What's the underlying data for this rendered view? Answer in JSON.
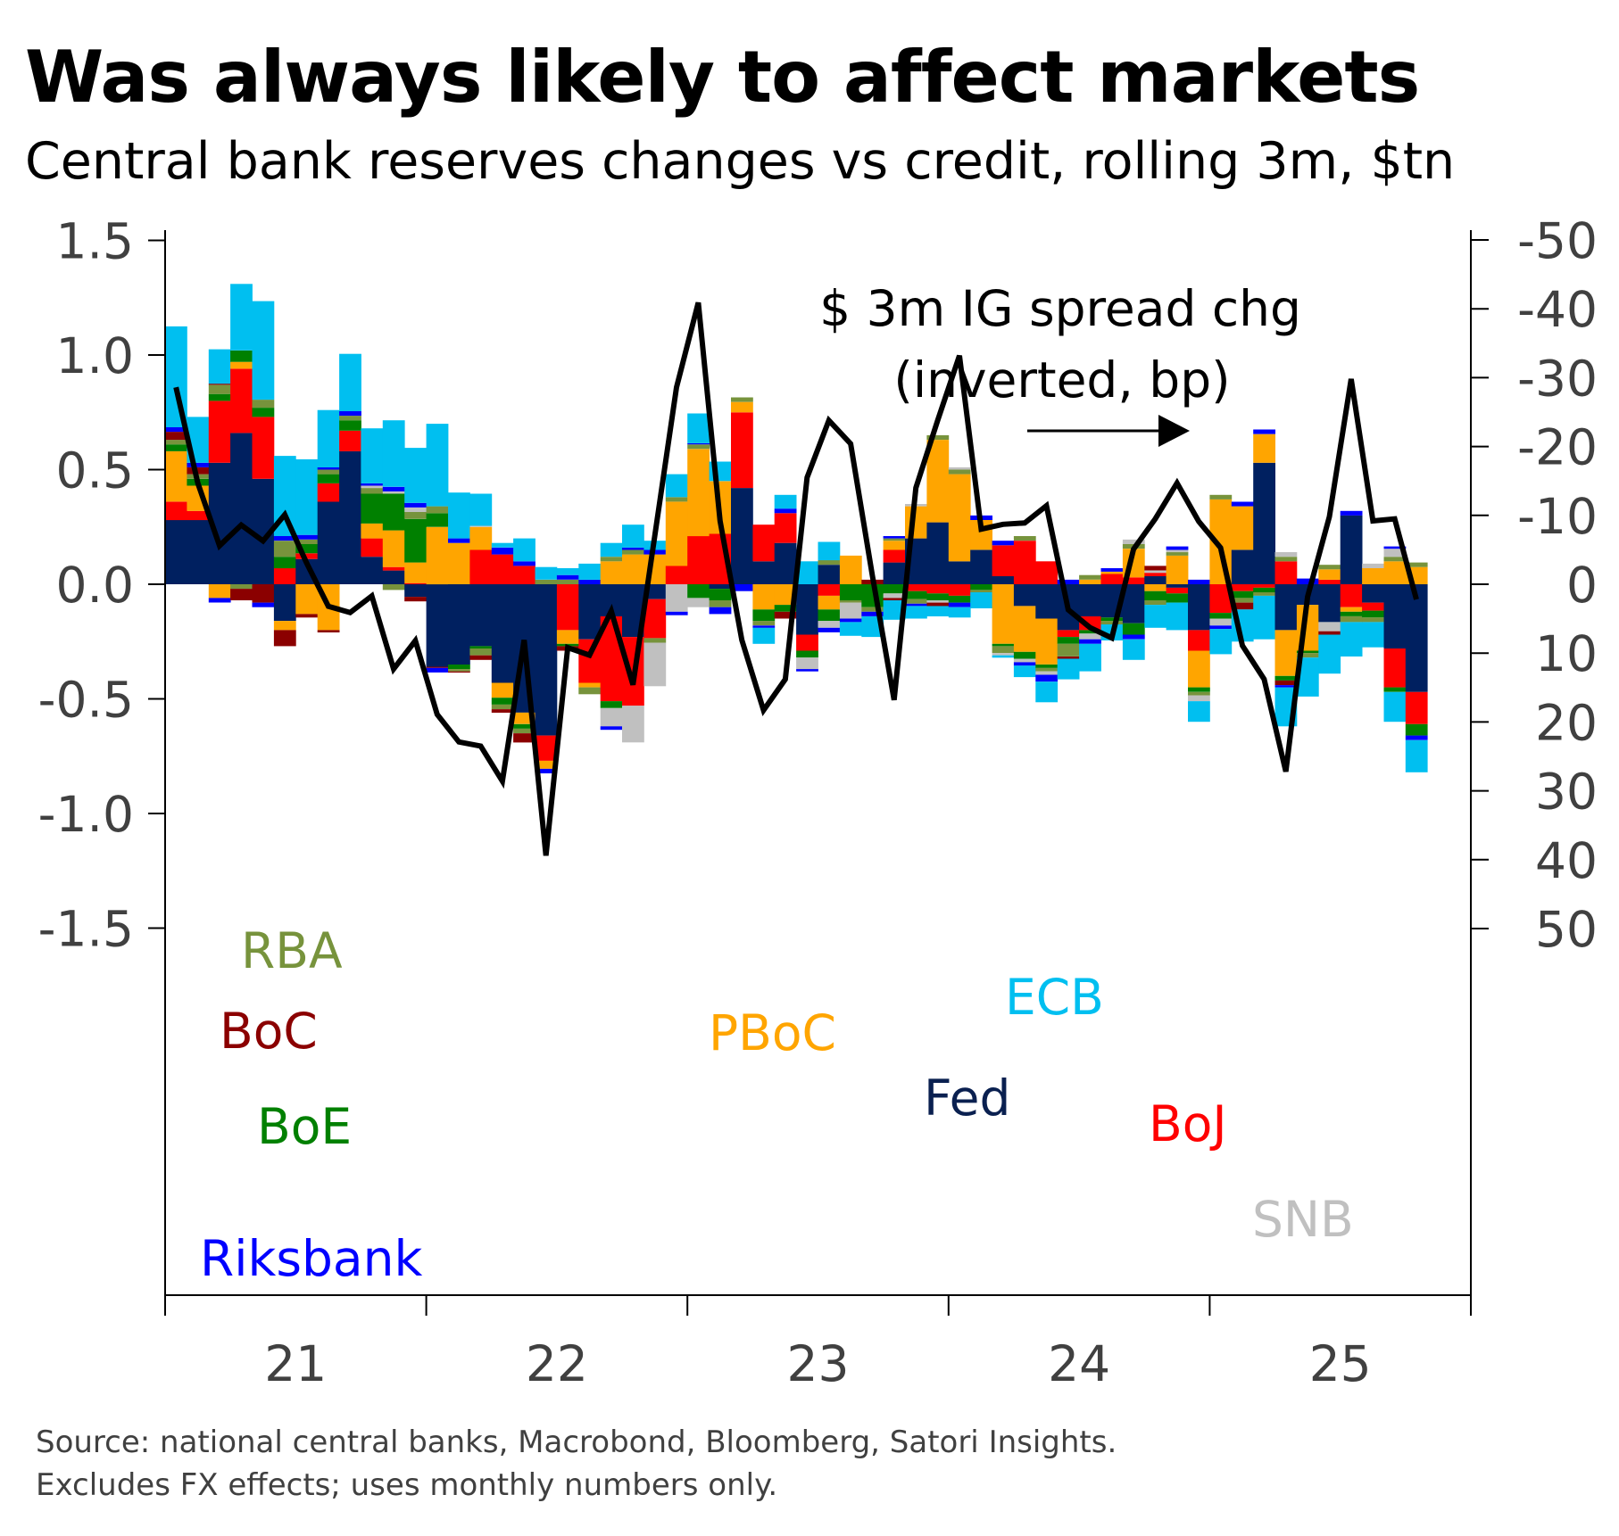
{
  "title": "Was always likely to affect markets",
  "subtitle": "Central bank reserves changes vs credit, rolling 3m, $tn",
  "source_lines": [
    "Source: national central banks, Macrobond, Bloomberg, Satori Insights.",
    "Excludes FX effects; uses monthly numbers only."
  ],
  "chart_data": {
    "type": "bar",
    "stacked": true,
    "x_start": "2021-01",
    "x_frequency": "monthly",
    "x_tick_labels": [
      "21",
      "22",
      "23",
      "24",
      "25"
    ],
    "ylim": [
      -1.6,
      1.6
    ],
    "y_ticks": [
      1.5,
      1.0,
      0.5,
      0.0,
      -0.5,
      -1.0,
      -1.5
    ],
    "y_tick_labels": [
      "1.5",
      "1.0",
      "0.5",
      "0.0",
      "-0.5",
      "-1.0",
      "-1.5"
    ],
    "y2_ticks": [
      -50,
      -40,
      -30,
      -20,
      -10,
      0,
      10,
      20,
      30,
      40,
      50
    ],
    "y2_tick_labels": [
      "-50",
      "-40",
      "-30",
      "-20",
      "-10",
      "0",
      "10",
      "20",
      "30",
      "40",
      "50"
    ],
    "y2_inverted": true,
    "grid": false,
    "series": [
      {
        "name": "Fed",
        "color": "#002060",
        "values": [
          0.28,
          0.28,
          0.53,
          0.66,
          0.46,
          -0.16,
          0.11,
          0.36,
          0.58,
          0.12,
          0.06,
          -0.055,
          -0.36,
          -0.35,
          -0.27,
          -0.43,
          -0.56,
          -0.66,
          0,
          -0.24,
          -0.14,
          -0.23,
          -0.065,
          0,
          0,
          -0.02,
          0.42,
          0.1,
          0.18,
          -0.22,
          0.085,
          0,
          0,
          0.095,
          0.2,
          0.27,
          0.1,
          0.15,
          0.035,
          -0.095,
          -0.15,
          -0.2,
          -0.14,
          -0.145,
          -0.17,
          0.035,
          -0.015,
          -0.2,
          0,
          0.15,
          0.53,
          -0.2,
          -0.09,
          -0.165,
          0.3,
          -0.08,
          -0.28,
          -0.47
        ]
      },
      {
        "name": "BoJ",
        "color": "#ff0000",
        "values": [
          0.08,
          0.04,
          0.27,
          0.28,
          0.27,
          0.07,
          0.025,
          0.08,
          0.09,
          0.08,
          0.015,
          0.005,
          0,
          0,
          0.15,
          0.13,
          0.08,
          -0.11,
          -0.2,
          -0.19,
          -0.37,
          -0.3,
          -0.17,
          0.08,
          0.21,
          0.22,
          0.33,
          0.16,
          0.13,
          -0.07,
          -0.05,
          0,
          0,
          0.055,
          -0.03,
          -0.04,
          -0.05,
          0,
          0.135,
          0.19,
          0.1,
          -0.03,
          -0.06,
          0.045,
          0.03,
          0.015,
          -0.025,
          -0.09,
          -0.125,
          -0.03,
          -0.015,
          0.1,
          0,
          0.02,
          -0.1,
          -0.035,
          -0.17,
          -0.14
        ]
      },
      {
        "name": "PBoC",
        "color": "#ffa500",
        "values": [
          0.22,
          0.11,
          -0.06,
          0.03,
          0,
          -0.04,
          -0.13,
          -0.2,
          0,
          0.065,
          0.16,
          0.09,
          0.25,
          0.18,
          0.1,
          -0.065,
          -0.05,
          -0.035,
          -0.06,
          -0.02,
          0.1,
          0.13,
          0.13,
          0.28,
          0.38,
          0.23,
          0.045,
          -0.11,
          -0.09,
          0,
          -0.06,
          0.125,
          0,
          0.04,
          0.14,
          0.36,
          0.38,
          0.13,
          -0.26,
          -0.2,
          -0.2,
          0,
          0.02,
          0.01,
          0.125,
          -0.03,
          0.125,
          -0.16,
          0.37,
          0.19,
          0.125,
          -0.2,
          -0.2,
          0.045,
          -0.02,
          0.07,
          0.1,
          0.075
        ]
      },
      {
        "name": "BoE",
        "color": "#008000",
        "values": [
          0.03,
          0.03,
          0.03,
          0.05,
          0.04,
          0.05,
          0.04,
          0.04,
          0.045,
          0.13,
          0.16,
          0.19,
          0.06,
          -0.02,
          -0.01,
          -0.03,
          -0.02,
          0,
          -0.01,
          0,
          -0.03,
          0,
          0,
          0,
          -0.06,
          -0.05,
          0,
          -0.05,
          -0.03,
          -0.03,
          -0.05,
          -0.07,
          -0.1,
          -0.04,
          -0.035,
          -0.03,
          -0.03,
          -0.025,
          -0.01,
          -0.03,
          -0.015,
          -0.03,
          -0.015,
          -0.015,
          -0.05,
          -0.04,
          -0.04,
          -0.02,
          -0.025,
          -0.03,
          -0.02,
          -0.02,
          -0.01,
          0,
          -0.02,
          -0.03,
          -0.02,
          -0.05
        ]
      },
      {
        "name": "RBA",
        "color": "#77933c",
        "values": [
          0.02,
          0.02,
          0.04,
          -0.02,
          0.035,
          0.07,
          0.02,
          0.02,
          0.02,
          0.025,
          -0.025,
          0.03,
          0.03,
          -0.01,
          -0.03,
          -0.02,
          -0.02,
          0.02,
          0.02,
          -0.03,
          0.02,
          0.02,
          -0.02,
          0.02,
          0.02,
          -0.03,
          0.02,
          -0.02,
          0,
          0,
          0.02,
          -0.01,
          -0.02,
          0.01,
          -0.02,
          0.02,
          0.02,
          -0.01,
          -0.03,
          0.02,
          -0.015,
          -0.055,
          0.02,
          -0.015,
          0.02,
          -0.02,
          0.015,
          -0.015,
          0.02,
          -0.02,
          -0.015,
          0.02,
          -0.02,
          0.02,
          -0.025,
          -0.02,
          0.02,
          0.02
        ]
      },
      {
        "name": "SNB",
        "color": "#c0c0c0",
        "values": [
          0,
          0,
          0,
          0,
          0,
          0,
          0,
          0,
          0,
          0.01,
          0.01,
          0.02,
          0,
          0,
          0.005,
          0,
          0,
          0,
          0,
          0,
          -0.08,
          -0.16,
          -0.19,
          -0.12,
          -0.04,
          0,
          0,
          0,
          0,
          -0.05,
          -0.03,
          -0.07,
          0,
          -0.02,
          0.01,
          -0.01,
          0.01,
          0,
          -0.01,
          -0.015,
          -0.015,
          0,
          -0.025,
          0,
          0.02,
          0.01,
          0.01,
          -0.025,
          -0.03,
          0,
          0,
          0.02,
          0,
          -0.04,
          0,
          0.02,
          0.035,
          0
        ]
      },
      {
        "name": "BoC",
        "color": "#8b0000",
        "values": [
          0.035,
          0.03,
          0.005,
          -0.05,
          -0.08,
          -0.07,
          -0.015,
          -0.01,
          0,
          0,
          0,
          -0.02,
          -0.005,
          -0.005,
          -0.02,
          -0.015,
          -0.04,
          0,
          -0.02,
          0,
          0,
          0,
          0,
          0,
          0,
          0,
          0,
          0,
          -0.03,
          0,
          0,
          0,
          0.02,
          -0.01,
          0,
          -0.015,
          0,
          0,
          0,
          0,
          0,
          -0.01,
          0,
          0,
          0,
          0.02,
          0,
          0,
          0,
          -0.03,
          0,
          -0.02,
          0,
          -0.015,
          0,
          0,
          0,
          0
        ]
      },
      {
        "name": "Riksbank",
        "color": "#0000ff",
        "values": [
          0.02,
          0.02,
          -0.02,
          0,
          -0.02,
          0.02,
          0.02,
          0.01,
          0.02,
          0.01,
          0.02,
          0.02,
          -0.02,
          0.02,
          0,
          0.03,
          0.02,
          -0.02,
          0.02,
          0.02,
          -0.015,
          0.01,
          0.02,
          -0.015,
          0.005,
          -0.03,
          -0.03,
          -0.01,
          0.02,
          -0.01,
          -0.02,
          -0.015,
          -0.02,
          0.01,
          -0.01,
          0,
          -0.02,
          0.02,
          0.02,
          -0.015,
          -0.03,
          0.02,
          -0.02,
          0.015,
          -0.02,
          0,
          0.015,
          0.02,
          -0.015,
          0.02,
          0.02,
          -0.01,
          0.025,
          0,
          0.02,
          0,
          0.01,
          -0.02
        ]
      },
      {
        "name": "ECB",
        "color": "#00bff0",
        "values": [
          0.44,
          0.2,
          0.15,
          0.29,
          0.43,
          0.35,
          0.33,
          0.25,
          0.25,
          0.24,
          0.29,
          0.24,
          0.36,
          0.2,
          0.14,
          0.02,
          0.1,
          0.055,
          0.03,
          0.07,
          0.06,
          0.1,
          0.04,
          0.1,
          0.13,
          0.085,
          0,
          -0.07,
          0.06,
          0.1,
          0.08,
          -0.06,
          -0.09,
          -0.085,
          -0.055,
          -0.045,
          -0.045,
          -0.07,
          -0.01,
          -0.05,
          -0.09,
          -0.09,
          -0.12,
          -0.07,
          -0.09,
          -0.1,
          -0.12,
          -0.09,
          -0.11,
          -0.14,
          -0.19,
          -0.17,
          -0.17,
          -0.17,
          -0.15,
          -0.11,
          -0.13,
          -0.14
        ]
      }
    ],
    "line": {
      "name": "$ 3m IG spread chg (inverted, bp)",
      "axis": "right",
      "color": "#000000",
      "values": [
        -28.6,
        -14.7,
        -5.6,
        -8.6,
        -6.3,
        -10.1,
        -3.1,
        3.2,
        4.1,
        1.7,
        12.3,
        8.2,
        18.9,
        22.9,
        23.5,
        28.6,
        8.1,
        39.4,
        9.2,
        10.3,
        3.9,
        14.6,
        -7,
        -28.6,
        -40.9,
        -9.2,
        8.1,
        18.3,
        13.8,
        -15.5,
        -23.8,
        -20.4,
        -1.2,
        16.8,
        -14,
        -23.8,
        -33.2,
        -8,
        -8.7,
        -8.9,
        -11.4,
        3.7,
        6.3,
        7.8,
        -5.1,
        -9.5,
        -14.7,
        -9.1,
        -5.3,
        8.9,
        13.8,
        27.2,
        1.8,
        -9.8,
        -29.8,
        -9.2,
        -9.5,
        2.2
      ]
    },
    "annotation_line1": "$ 3m IG spread chg",
    "annotation_line2": "(inverted, bp)",
    "series_labels": [
      "RBA",
      "BoC",
      "BoE",
      "Riksbank",
      "PBoC",
      "ECB",
      "Fed",
      "BoJ",
      "SNB"
    ]
  }
}
